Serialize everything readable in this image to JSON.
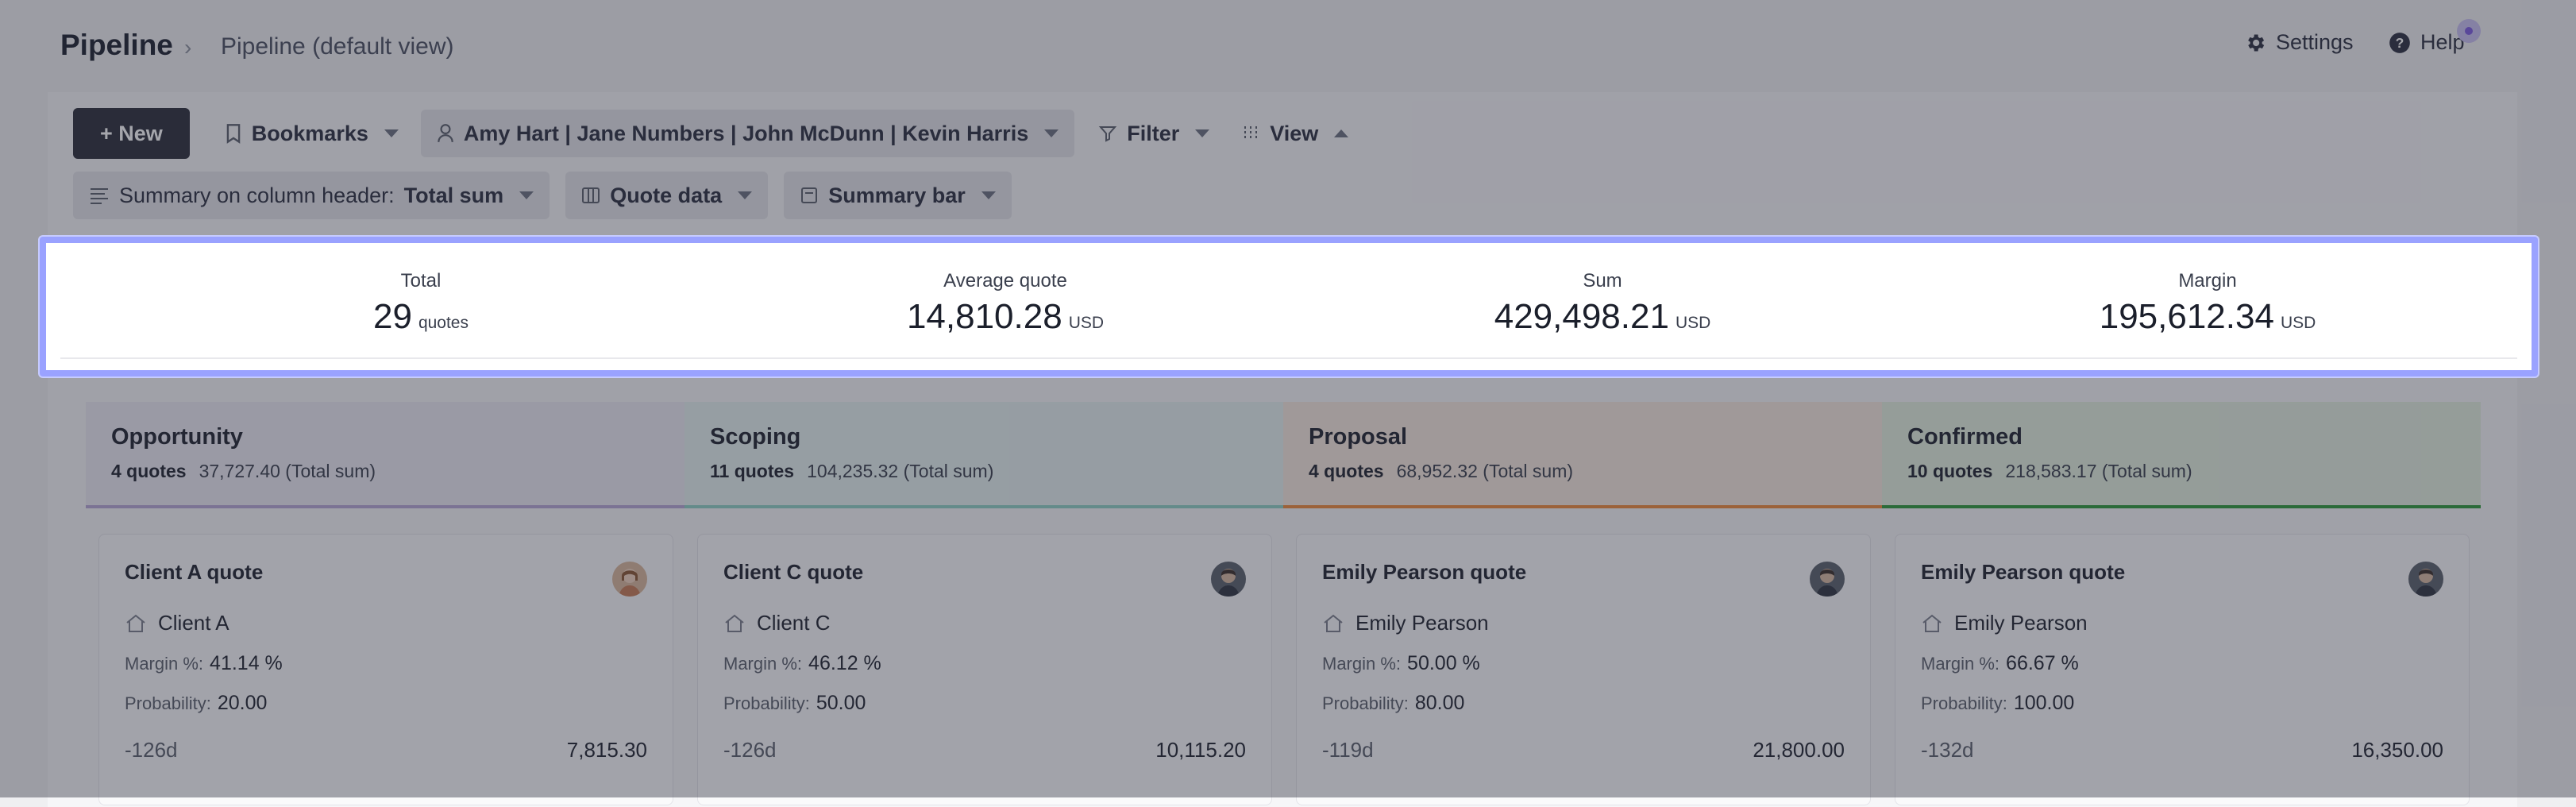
{
  "header": {
    "title": "Pipeline",
    "breadcrumb_sep": "›",
    "breadcrumb": "Pipeline (default view)",
    "settings_label": "Settings",
    "help_label": "Help"
  },
  "toolbar": {
    "new_label": "+ New",
    "bookmarks_label": "Bookmarks",
    "users_label": "Amy Hart | Jane Numbers | John McDunn | Kevin Harris",
    "filter_label": "Filter",
    "view_label": "View",
    "summary_prefix": "Summary on column header:",
    "summary_value": "Total sum",
    "quote_data_label": "Quote data",
    "summary_bar_label": "Summary bar"
  },
  "summary": {
    "total": {
      "label": "Total",
      "value": "29",
      "unit": "quotes"
    },
    "average": {
      "label": "Average quote",
      "value": "14,810.28",
      "unit": "USD"
    },
    "sum": {
      "label": "Sum",
      "value": "429,498.21",
      "unit": "USD"
    },
    "margin": {
      "label": "Margin",
      "value": "195,612.34",
      "unit": "USD"
    }
  },
  "columns": [
    {
      "title": "Opportunity",
      "count": "4 quotes",
      "total": "37,727.40 (Total sum)",
      "color": "#b7a8d6"
    },
    {
      "title": "Scoping",
      "count": "11 quotes",
      "total": "104,235.32 (Total sum)",
      "color": "#8fd0c4"
    },
    {
      "title": "Proposal",
      "count": "4 quotes",
      "total": "68,952.32 (Total sum)",
      "color": "#f08a3c"
    },
    {
      "title": "Confirmed",
      "count": "10 quotes",
      "total": "218,583.17 (Total sum)",
      "color": "#2e9a3a"
    }
  ],
  "cards": [
    {
      "title": "Client A quote",
      "client": "Client A",
      "margin_label": "Margin %:",
      "margin": "41.14 %",
      "prob_label": "Probability:",
      "prob": "20.00",
      "days": "-126d",
      "amount": "7,815.30"
    },
    {
      "title": "Client C quote",
      "client": "Client C",
      "margin_label": "Margin %:",
      "margin": "46.12 %",
      "prob_label": "Probability:",
      "prob": "50.00",
      "days": "-126d",
      "amount": "10,115.20"
    },
    {
      "title": "Emily Pearson quote",
      "client": "Emily Pearson",
      "margin_label": "Margin %:",
      "margin": "50.00 %",
      "prob_label": "Probability:",
      "prob": "80.00",
      "days": "-119d",
      "amount": "21,800.00"
    },
    {
      "title": "Emily Pearson quote",
      "client": "Emily Pearson",
      "margin_label": "Margin %:",
      "margin": "66.67 %",
      "prob_label": "Probability:",
      "prob": "100.00",
      "days": "-132d",
      "amount": "16,350.00"
    }
  ],
  "colors": {
    "accent_highlight": "#9aa2ff",
    "new_button": "#2b2e3a"
  }
}
